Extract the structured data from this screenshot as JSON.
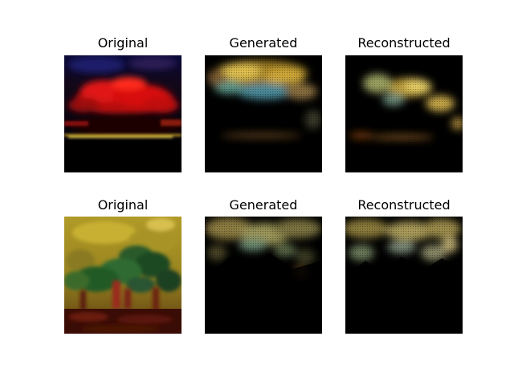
{
  "figure": {
    "rows": [
      {
        "panels": [
          {
            "title": "Original",
            "image": "red-sunset-sky-painting"
          },
          {
            "title": "Generated",
            "image": "generated-yellow-cyan-clouds"
          },
          {
            "title": "Reconstructed",
            "image": "reconstructed-yellow-clouds"
          }
        ]
      },
      {
        "panels": [
          {
            "title": "Original",
            "image": "yellow-sky-olive-trees-painting"
          },
          {
            "title": "Generated",
            "image": "generated-dark-trees"
          },
          {
            "title": "Reconstructed",
            "image": "reconstructed-dark-trees"
          }
        ]
      }
    ]
  }
}
